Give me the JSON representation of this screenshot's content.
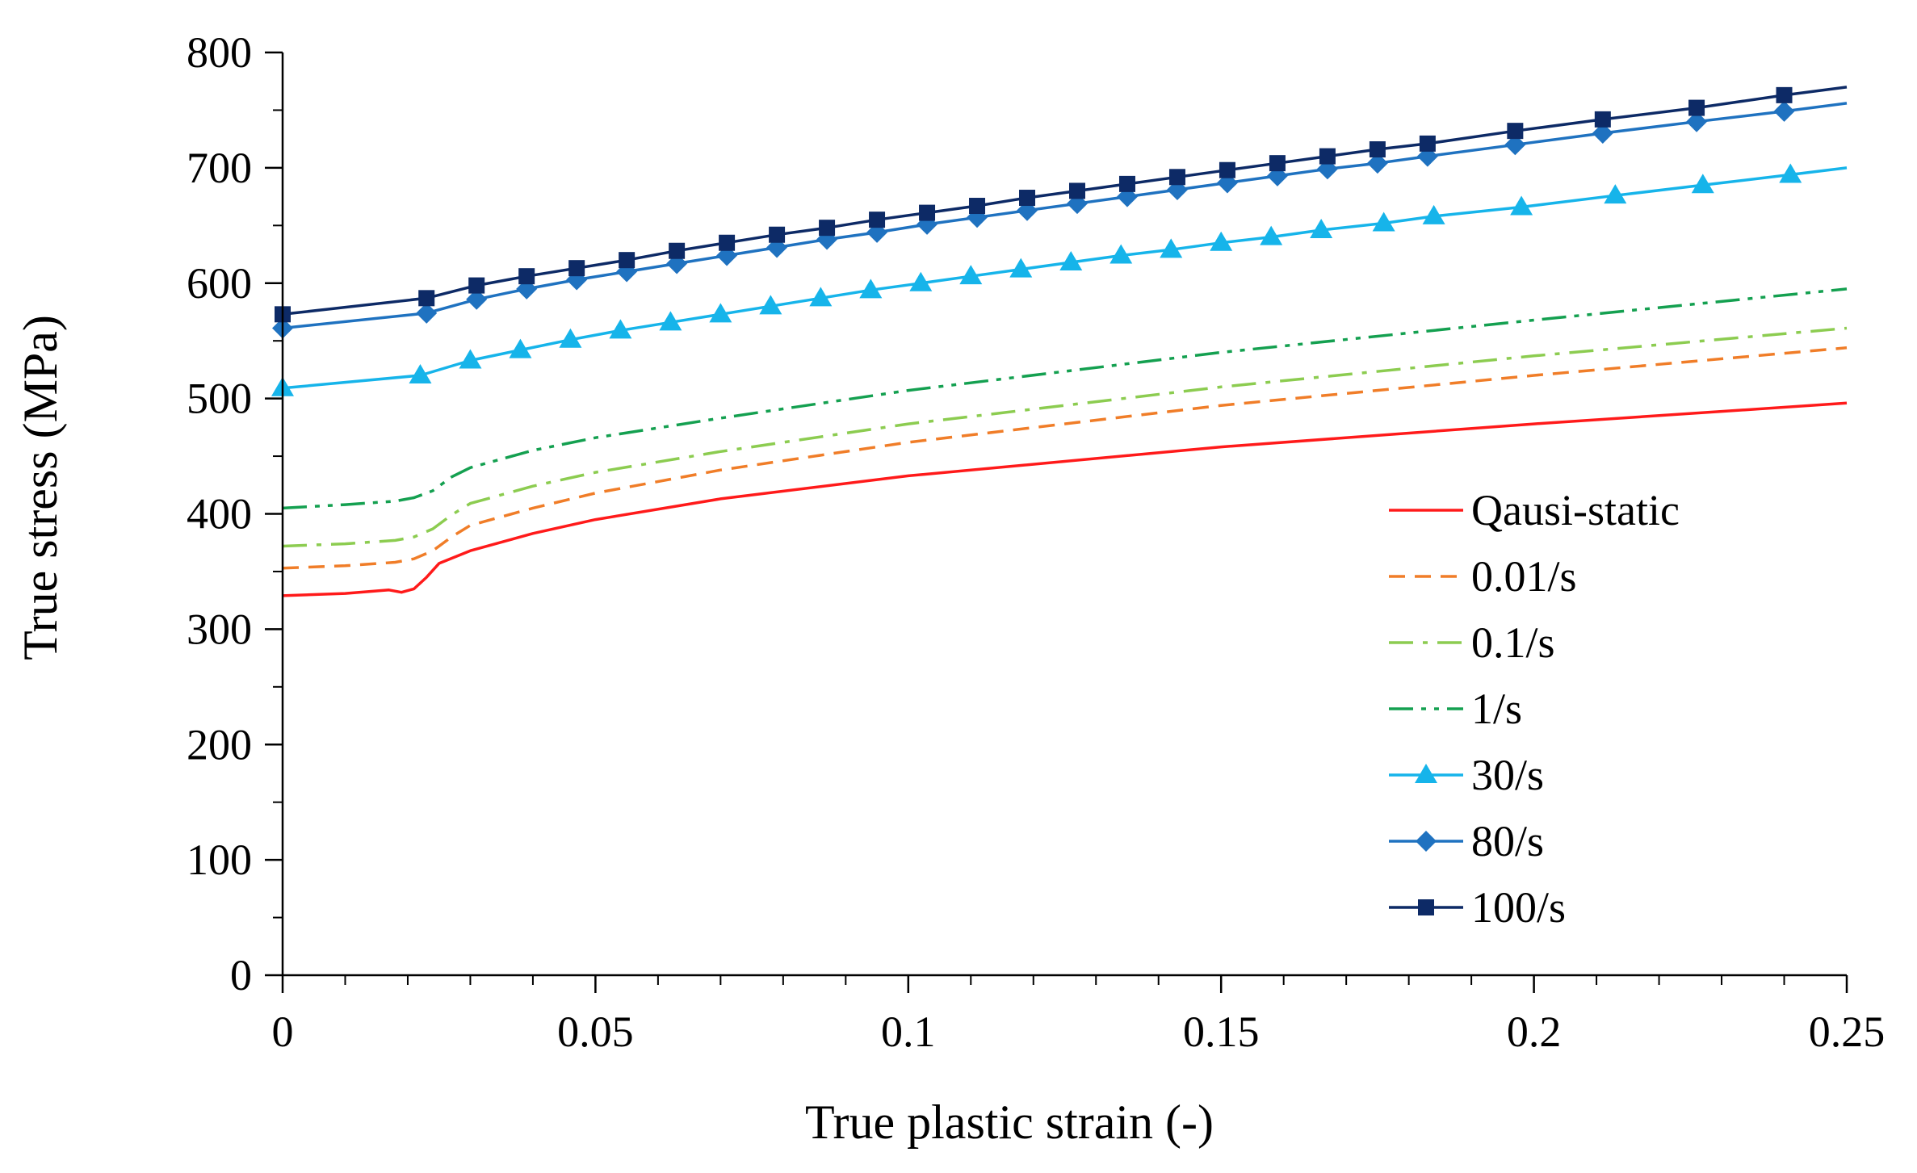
{
  "chart_data": {
    "type": "line",
    "title": "",
    "xlabel": "True plastic strain (-)",
    "ylabel": "True stress (MPa)",
    "xlim": [
      0,
      0.25
    ],
    "ylim": [
      0,
      800
    ],
    "xticks": [
      0,
      0.05,
      0.1,
      0.15,
      0.2,
      0.25
    ],
    "xtick_labels": [
      "0",
      "0.05",
      "0.1",
      "0.15",
      "0.2",
      "0.25"
    ],
    "yticks": [
      0,
      100,
      200,
      300,
      400,
      500,
      600,
      700,
      800
    ],
    "ytick_labels": [
      "0",
      "100",
      "200",
      "300",
      "400",
      "500",
      "600",
      "700",
      "800"
    ],
    "grid": false,
    "legend_position": "right",
    "series": [
      {
        "name": "Qausi-static",
        "color": "#ff1a1a",
        "dash": "solid",
        "marker": "none",
        "x": [
          0,
          0.01,
          0.017,
          0.019,
          0.021,
          0.023,
          0.025,
          0.03,
          0.04,
          0.05,
          0.07,
          0.1,
          0.15,
          0.2,
          0.25
        ],
        "y": [
          329,
          331,
          334,
          332,
          335,
          345,
          357,
          368,
          383,
          395,
          413,
          433,
          458,
          478,
          496
        ]
      },
      {
        "name": "0.01/s",
        "color": "#f07d28",
        "dash": "20,12",
        "marker": "none",
        "x": [
          0,
          0.01,
          0.018,
          0.021,
          0.024,
          0.027,
          0.03,
          0.04,
          0.05,
          0.07,
          0.1,
          0.15,
          0.2,
          0.25
        ],
        "y": [
          353,
          355,
          358,
          361,
          368,
          380,
          390,
          405,
          418,
          438,
          462,
          494,
          520,
          544
        ]
      },
      {
        "name": "0.1/s",
        "color": "#8ccc50",
        "dash": "30,12,6,12",
        "marker": "none",
        "x": [
          0,
          0.01,
          0.018,
          0.021,
          0.024,
          0.027,
          0.03,
          0.04,
          0.05,
          0.07,
          0.1,
          0.15,
          0.2,
          0.25
        ],
        "y": [
          372,
          374,
          377,
          380,
          387,
          399,
          409,
          424,
          436,
          454,
          478,
          510,
          537,
          561
        ]
      },
      {
        "name": "1/s",
        "color": "#14a050",
        "dash": "30,10,6,10,6,10",
        "marker": "none",
        "x": [
          0,
          0.01,
          0.018,
          0.021,
          0.024,
          0.027,
          0.03,
          0.04,
          0.05,
          0.07,
          0.1,
          0.15,
          0.2,
          0.25
        ],
        "y": [
          405,
          408,
          411,
          414,
          420,
          432,
          440,
          455,
          466,
          483,
          507,
          540,
          568,
          595
        ]
      },
      {
        "name": "30/s",
        "color": "#16b4ea",
        "dash": "solid",
        "marker": "triangle",
        "x": [
          0,
          0.022,
          0.03,
          0.038,
          0.046,
          0.054,
          0.062,
          0.07,
          0.078,
          0.086,
          0.094,
          0.102,
          0.11,
          0.118,
          0.126,
          0.134,
          0.142,
          0.15,
          0.158,
          0.166,
          0.176,
          0.184,
          0.198,
          0.213,
          0.227,
          0.241,
          0.25
        ],
        "y": [
          509,
          520,
          533,
          542,
          551,
          559,
          566,
          573,
          580,
          587,
          594,
          600,
          606,
          612,
          618,
          624,
          629,
          635,
          640,
          646,
          652,
          658,
          666,
          676,
          685,
          694,
          700
        ]
      },
      {
        "name": "80/s",
        "color": "#1f72c0",
        "dash": "solid",
        "marker": "diamond",
        "x": [
          0,
          0.023,
          0.031,
          0.039,
          0.047,
          0.055,
          0.063,
          0.071,
          0.079,
          0.087,
          0.095,
          0.103,
          0.111,
          0.119,
          0.127,
          0.135,
          0.143,
          0.151,
          0.159,
          0.167,
          0.175,
          0.183,
          0.197,
          0.211,
          0.226,
          0.24,
          0.25
        ],
        "y": [
          561,
          574,
          586,
          595,
          603,
          610,
          617,
          624,
          631,
          638,
          644,
          651,
          657,
          663,
          669,
          675,
          681,
          687,
          693,
          699,
          704,
          710,
          720,
          730,
          740,
          749,
          756
        ]
      },
      {
        "name": "100/s",
        "color": "#0d2a66",
        "dash": "solid",
        "marker": "square",
        "x": [
          0,
          0.023,
          0.031,
          0.039,
          0.047,
          0.055,
          0.063,
          0.071,
          0.079,
          0.087,
          0.095,
          0.103,
          0.111,
          0.119,
          0.127,
          0.135,
          0.143,
          0.151,
          0.159,
          0.167,
          0.175,
          0.183,
          0.197,
          0.211,
          0.226,
          0.24,
          0.25
        ],
        "y": [
          573,
          587,
          598,
          606,
          613,
          620,
          628,
          635,
          642,
          648,
          655,
          661,
          667,
          674,
          680,
          686,
          692,
          698,
          704,
          710,
          716,
          721,
          732,
          742,
          752,
          763,
          770
        ]
      }
    ]
  }
}
